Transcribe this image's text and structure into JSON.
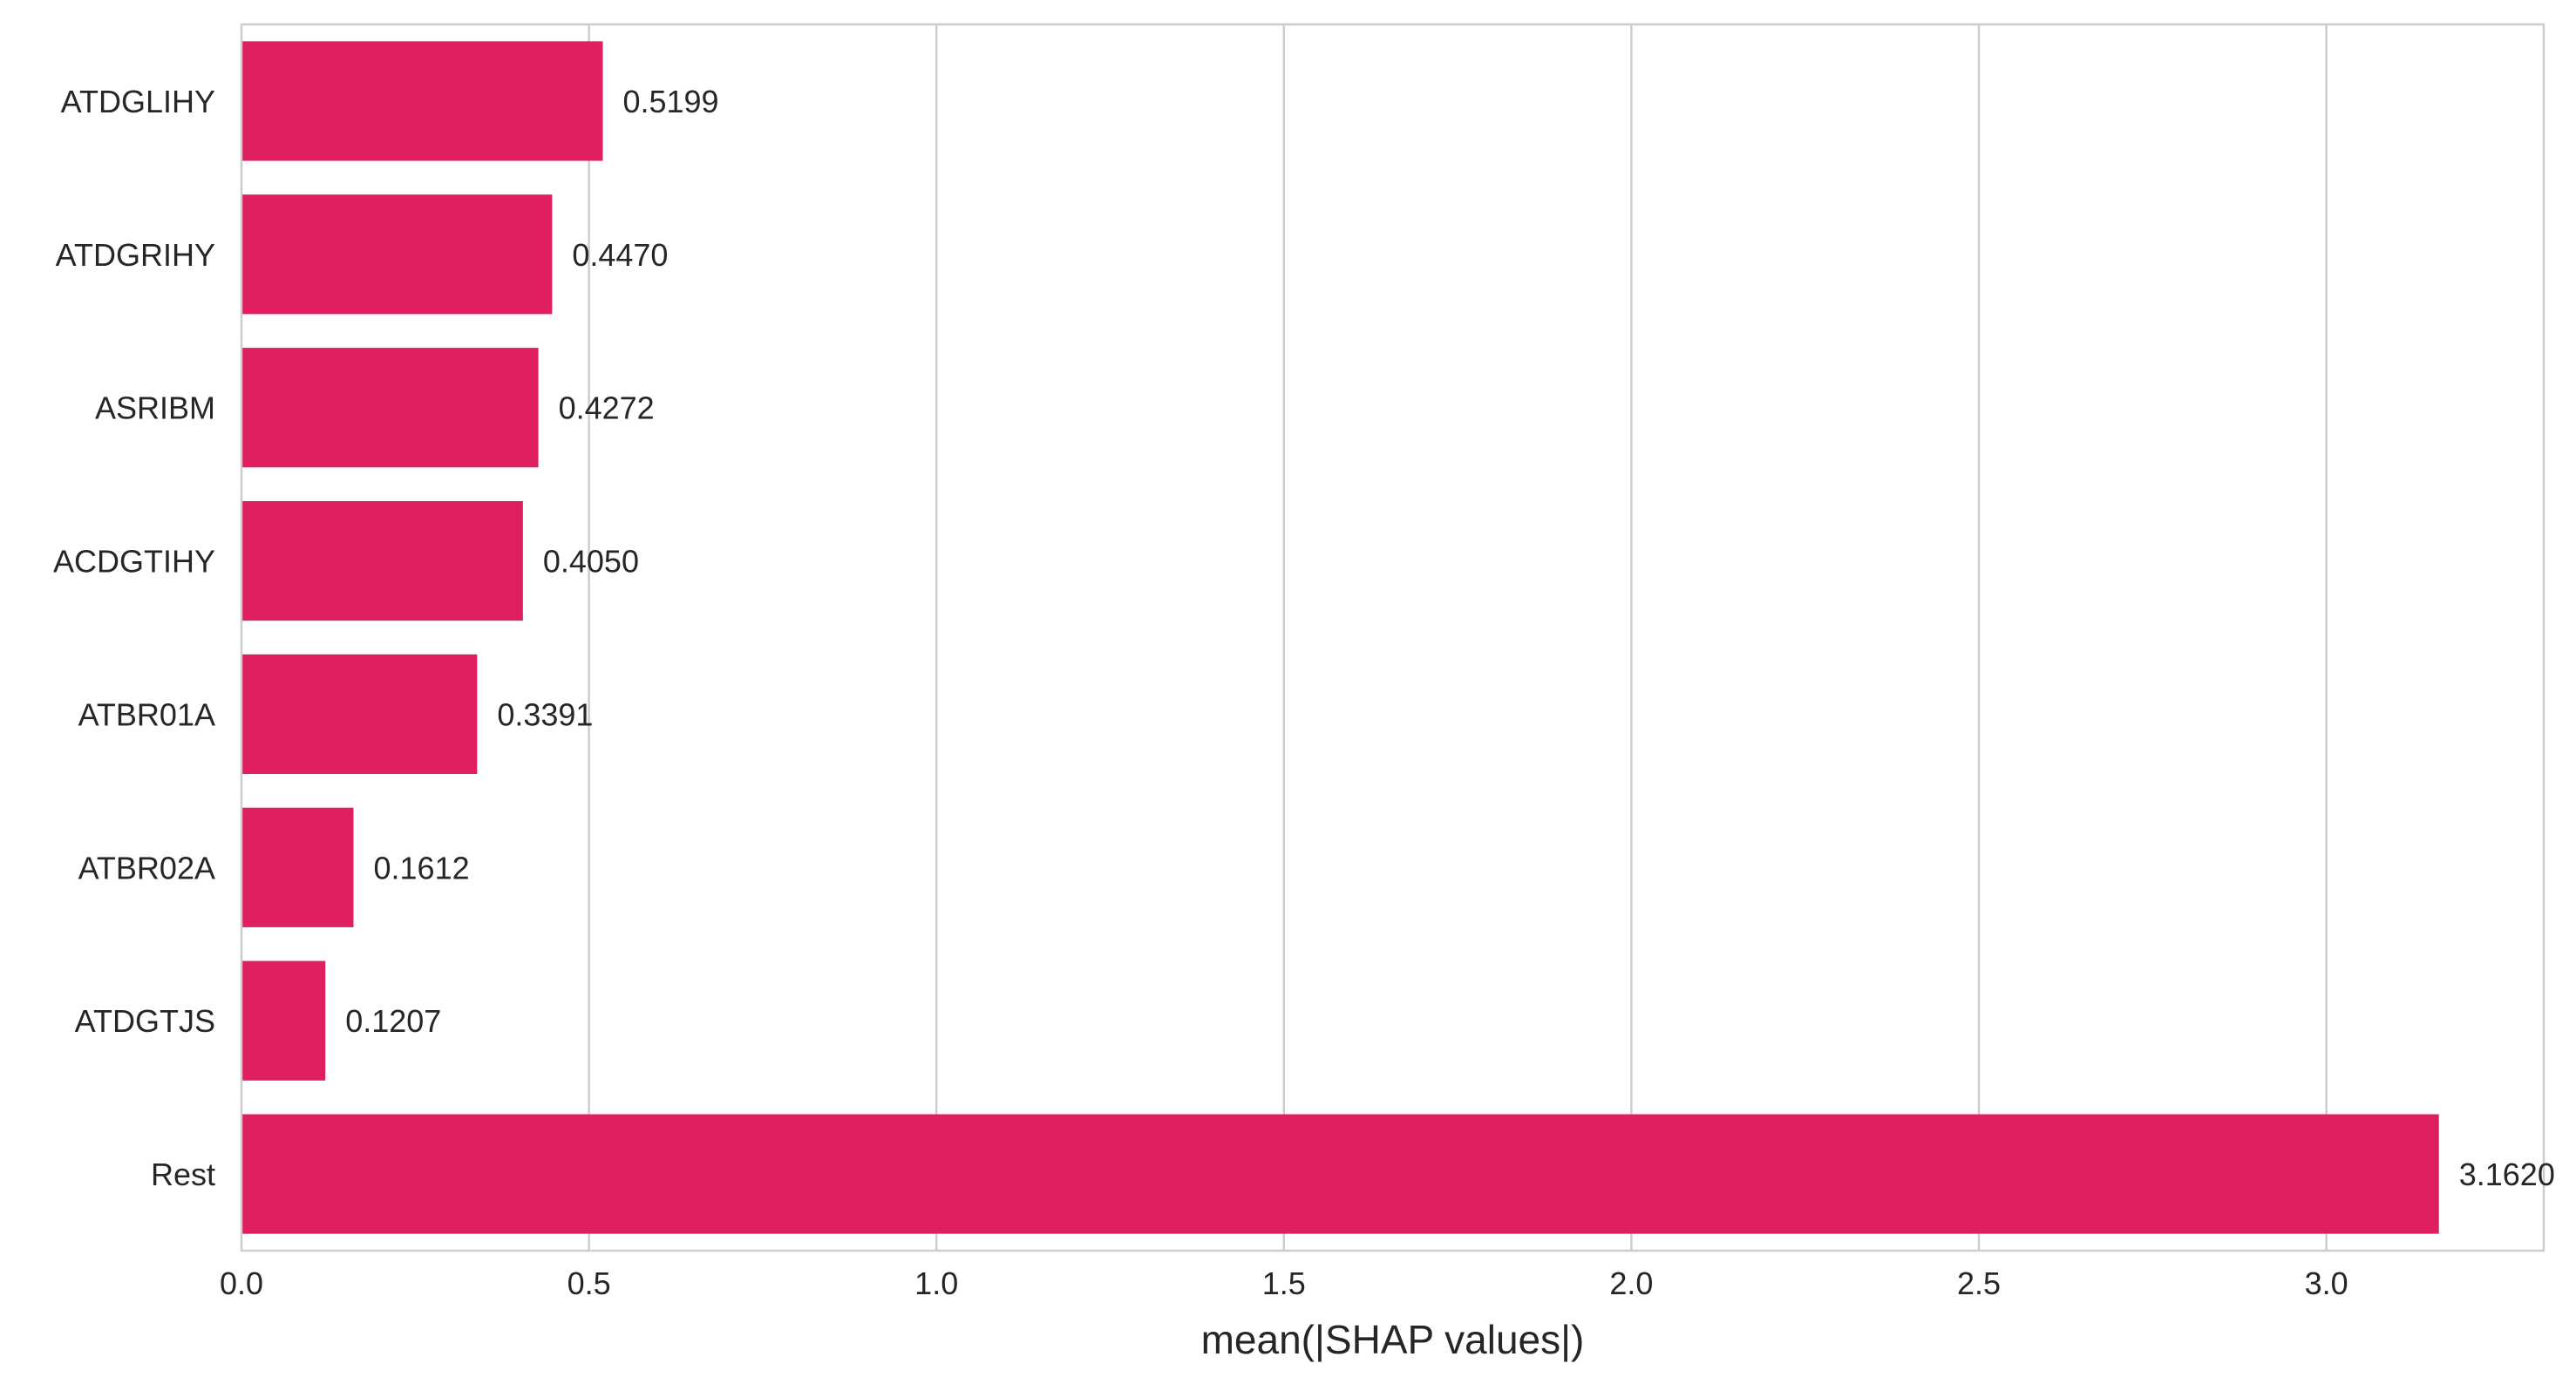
{
  "chart_data": {
    "type": "bar",
    "orientation": "horizontal",
    "categories": [
      "ATDGLIHY",
      "ATDGRIHY",
      "ASRIBM",
      "ACDGTIHY",
      "ATBR01A",
      "ATBR02A",
      "ATDGTJS",
      "Rest"
    ],
    "values": [
      0.5199,
      0.447,
      0.4272,
      0.405,
      0.3391,
      0.1612,
      0.1207,
      3.162
    ],
    "value_labels": [
      "0.5199",
      "0.4470",
      "0.4272",
      "0.4050",
      "0.3391",
      "0.1612",
      "0.1207",
      "3.1620"
    ],
    "xlabel": "mean(|SHAP values|)",
    "ylabel": "",
    "title": "",
    "xlim": [
      0,
      3.32
    ],
    "xticks": [
      0.0,
      0.5,
      1.0,
      1.5,
      2.0,
      2.5,
      3.0
    ],
    "xtick_labels": [
      "0.0",
      "0.5",
      "1.0",
      "1.5",
      "2.0",
      "2.5",
      "3.0"
    ],
    "grid": "vertical",
    "bar_color": "#e0205e",
    "grid_color": "#cccccc",
    "spine_color": "#cccccc"
  }
}
